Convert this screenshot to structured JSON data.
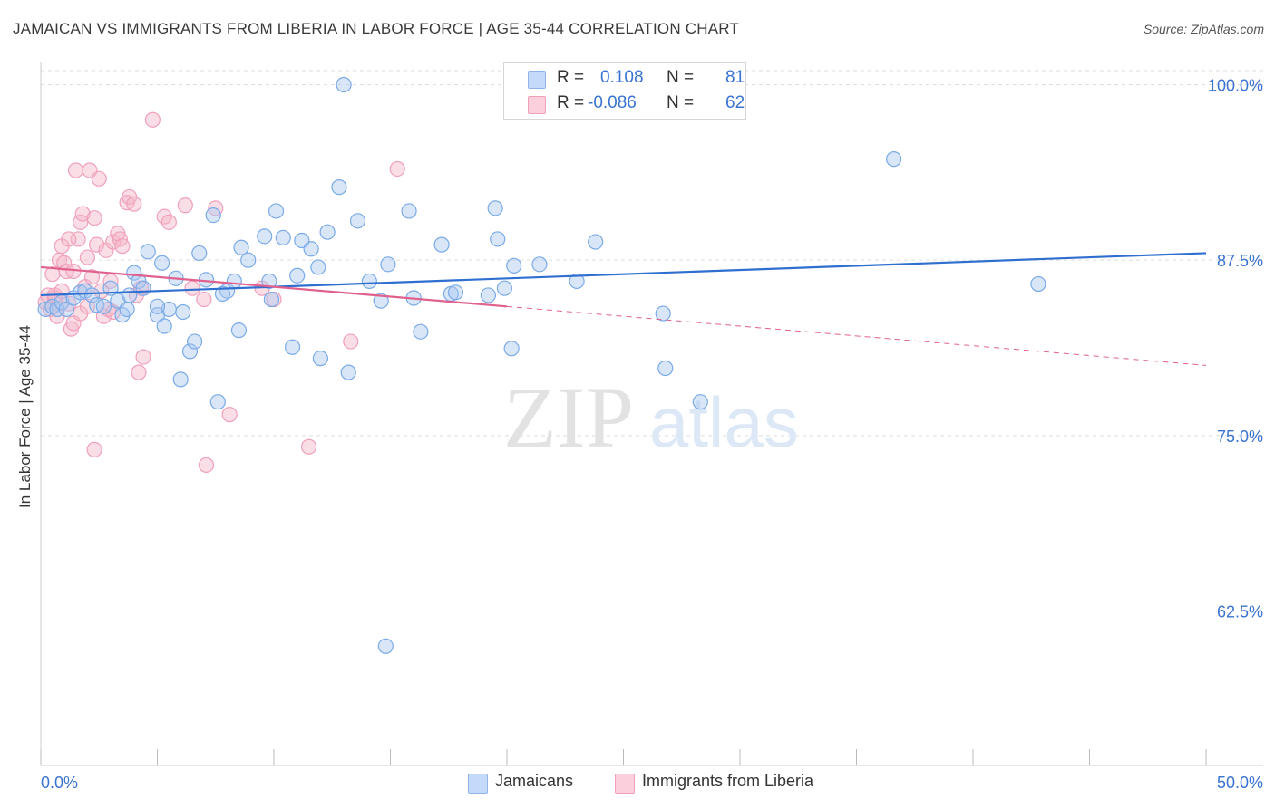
{
  "title": "JAMAICAN VS IMMIGRANTS FROM LIBERIA IN LABOR FORCE | AGE 35-44 CORRELATION CHART",
  "source": "Source: ZipAtlas.com",
  "watermark": {
    "zip": "ZIP",
    "atlas": "atlas"
  },
  "legend": {
    "r_label": "R =",
    "n_label": "N =",
    "rows": [
      {
        "r": "0.108",
        "n": "81",
        "color": "#a8c8f0"
      },
      {
        "r": "-0.086",
        "n": "62",
        "color": "#f4b6c8"
      }
    ]
  },
  "bottom_legend": [
    "Jamaicans",
    "Immigrants from Liberia"
  ],
  "chart_data": {
    "type": "scatter",
    "title": "JAMAICAN VS IMMIGRANTS FROM LIBERIA IN LABOR FORCE | AGE 35-44 CORRELATION CHART",
    "xlabel": "",
    "ylabel": "In Labor Force | Age 35-44",
    "xlim": [
      0,
      50
    ],
    "ylim": [
      51.5,
      101
    ],
    "x_tick_labels": [
      "0.0%",
      "50.0%"
    ],
    "x_ticks": [
      0,
      50
    ],
    "y_ticks": [
      62.5,
      75.0,
      87.5,
      100.0
    ],
    "y_tick_labels": [
      "62.5%",
      "75.0%",
      "87.5%",
      "100.0%"
    ],
    "grid": "horizontal dashed",
    "legend_position": "top-center",
    "colors": {
      "jamaicans": "#7aaae8",
      "jamaicans_line": "#2f6fd0",
      "liberia": "#f0a0bc",
      "liberia_line": "#e0608e",
      "tick_label": "#3a73d1"
    },
    "series": [
      {
        "name": "Jamaicans",
        "r": 0.108,
        "n": 81,
        "trend": {
          "x": [
            0,
            50
          ],
          "y": [
            85.0,
            88.0
          ]
        },
        "points": [
          [
            0.2,
            84.0
          ],
          [
            0.5,
            84.2
          ],
          [
            0.7,
            84.0
          ],
          [
            0.9,
            84.5
          ],
          [
            1.1,
            84.0
          ],
          [
            1.4,
            84.8
          ],
          [
            1.7,
            85.2
          ],
          [
            1.9,
            85.3
          ],
          [
            2.2,
            85.0
          ],
          [
            2.4,
            84.3
          ],
          [
            2.7,
            84.2
          ],
          [
            3.0,
            85.5
          ],
          [
            3.3,
            84.6
          ],
          [
            3.5,
            83.6
          ],
          [
            3.7,
            84.0
          ],
          [
            4.0,
            86.6
          ],
          [
            4.2,
            86.0
          ],
          [
            4.4,
            85.5
          ],
          [
            4.6,
            88.1
          ],
          [
            5.0,
            83.6
          ],
          [
            5.2,
            87.3
          ],
          [
            5.5,
            84.0
          ],
          [
            5.8,
            86.2
          ],
          [
            6.1,
            83.8
          ],
          [
            6.4,
            81.0
          ],
          [
            6.8,
            88.0
          ],
          [
            7.1,
            86.1
          ],
          [
            7.4,
            90.7
          ],
          [
            8.0,
            85.3
          ],
          [
            8.3,
            86.0
          ],
          [
            8.6,
            88.4
          ],
          [
            8.9,
            87.5
          ],
          [
            9.6,
            89.2
          ],
          [
            9.8,
            86.0
          ],
          [
            10.1,
            91.0
          ],
          [
            10.4,
            89.1
          ],
          [
            11.0,
            86.4
          ],
          [
            11.2,
            88.9
          ],
          [
            11.6,
            88.3
          ],
          [
            11.9,
            87.0
          ],
          [
            12.3,
            89.5
          ],
          [
            12.8,
            92.7
          ],
          [
            13.2,
            79.5
          ],
          [
            13.6,
            90.3
          ],
          [
            14.1,
            86.0
          ],
          [
            14.6,
            84.6
          ],
          [
            14.9,
            87.2
          ],
          [
            15.8,
            91.0
          ],
          [
            16.3,
            82.4
          ],
          [
            17.2,
            88.6
          ],
          [
            17.6,
            85.1
          ],
          [
            17.8,
            85.2
          ],
          [
            19.2,
            85.0
          ],
          [
            19.5,
            91.2
          ],
          [
            19.6,
            89.0
          ],
          [
            19.9,
            85.5
          ],
          [
            20.2,
            81.2
          ],
          [
            20.3,
            87.1
          ],
          [
            21.4,
            87.2
          ],
          [
            23.0,
            86.0
          ],
          [
            23.8,
            88.8
          ],
          [
            26.7,
            83.7
          ],
          [
            26.8,
            79.8
          ],
          [
            28.3,
            77.4
          ],
          [
            36.6,
            94.7
          ],
          [
            42.8,
            85.8
          ],
          [
            13.0,
            100.0
          ],
          [
            28.3,
            100.0
          ],
          [
            14.8,
            60.0
          ],
          [
            6.6,
            81.7
          ],
          [
            7.6,
            77.4
          ],
          [
            8.5,
            82.5
          ],
          [
            10.8,
            81.3
          ],
          [
            5.3,
            82.8
          ],
          [
            7.8,
            85.1
          ],
          [
            5.0,
            84.2
          ],
          [
            3.8,
            85.0
          ],
          [
            12.0,
            80.5
          ],
          [
            6.0,
            79.0
          ],
          [
            9.9,
            84.7
          ],
          [
            16.0,
            84.8
          ]
        ]
      },
      {
        "name": "Immigrants from Liberia",
        "r": -0.086,
        "n": 62,
        "trend": {
          "x": [
            0,
            20
          ],
          "y": [
            87.0,
            84.2
          ]
        },
        "trend_dashed": {
          "x": [
            20,
            50
          ],
          "y": [
            84.2,
            80.0
          ]
        },
        "points": [
          [
            0.2,
            84.5
          ],
          [
            0.3,
            85.0
          ],
          [
            0.4,
            84.0
          ],
          [
            0.5,
            86.5
          ],
          [
            0.6,
            84.8
          ],
          [
            0.7,
            83.5
          ],
          [
            0.8,
            87.5
          ],
          [
            0.9,
            88.5
          ],
          [
            1.0,
            87.3
          ],
          [
            1.1,
            86.7
          ],
          [
            1.2,
            84.4
          ],
          [
            1.3,
            82.6
          ],
          [
            1.4,
            83.0
          ],
          [
            1.5,
            93.9
          ],
          [
            1.6,
            89.0
          ],
          [
            1.7,
            90.2
          ],
          [
            1.8,
            90.8
          ],
          [
            1.9,
            85.6
          ],
          [
            2.0,
            87.7
          ],
          [
            2.1,
            93.9
          ],
          [
            2.2,
            86.3
          ],
          [
            2.3,
            90.5
          ],
          [
            2.4,
            88.6
          ],
          [
            2.5,
            93.3
          ],
          [
            2.6,
            85.3
          ],
          [
            2.7,
            83.5
          ],
          [
            2.8,
            88.2
          ],
          [
            2.9,
            84.0
          ],
          [
            3.0,
            86.0
          ],
          [
            3.1,
            88.8
          ],
          [
            3.3,
            89.4
          ],
          [
            3.4,
            89.0
          ],
          [
            3.5,
            88.5
          ],
          [
            3.7,
            91.6
          ],
          [
            3.8,
            92.0
          ],
          [
            4.0,
            91.5
          ],
          [
            4.3,
            85.5
          ],
          [
            4.4,
            80.6
          ],
          [
            4.8,
            97.5
          ],
          [
            5.3,
            90.6
          ],
          [
            5.5,
            90.2
          ],
          [
            6.2,
            91.4
          ],
          [
            6.5,
            85.5
          ],
          [
            7.0,
            84.7
          ],
          [
            7.5,
            91.2
          ],
          [
            8.1,
            76.5
          ],
          [
            9.5,
            85.5
          ],
          [
            10.0,
            84.7
          ],
          [
            11.5,
            74.2
          ],
          [
            13.3,
            81.7
          ],
          [
            15.3,
            94.0
          ],
          [
            4.2,
            79.5
          ],
          [
            2.3,
            74.0
          ],
          [
            7.1,
            72.9
          ],
          [
            1.2,
            89.0
          ],
          [
            1.7,
            83.7
          ],
          [
            2.0,
            84.2
          ],
          [
            0.6,
            85.0
          ],
          [
            0.9,
            85.3
          ],
          [
            1.4,
            86.7
          ],
          [
            3.1,
            83.8
          ],
          [
            4.1,
            85.0
          ]
        ]
      }
    ]
  }
}
